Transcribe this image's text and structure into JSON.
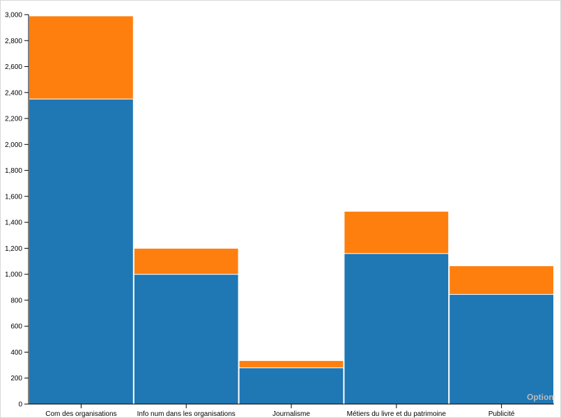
{
  "chart_data": {
    "type": "bar",
    "stacked": true,
    "categories": [
      "Com des organisations",
      "Info num dans les organisations",
      "Journalisme",
      "Métiers du livre et du patrimoine",
      "Publicité"
    ],
    "series": [
      {
        "color": "#1f77b4",
        "values": [
          2350,
          1000,
          280,
          1160,
          845
        ]
      },
      {
        "color": "#ff7f0e",
        "values": [
          640,
          200,
          55,
          325,
          220
        ]
      }
    ],
    "title": "",
    "xlabel": "",
    "ylabel": "",
    "ylim": [
      0,
      3000
    ],
    "y_ticks": [
      0,
      200,
      400,
      600,
      800,
      1000,
      1200,
      1400,
      1600,
      1800,
      2000,
      2200,
      2400,
      2600,
      2800,
      3000
    ],
    "y_tick_labels": [
      "0",
      "200",
      "400",
      "600",
      "800",
      "1,000",
      "1,200",
      "1,400",
      "1,600",
      "1,800",
      "2,000",
      "2,200",
      "2,400",
      "2,600",
      "2,800",
      "3,000"
    ],
    "grid": false,
    "legend": "none"
  },
  "controls": {
    "options_label": "Options"
  }
}
